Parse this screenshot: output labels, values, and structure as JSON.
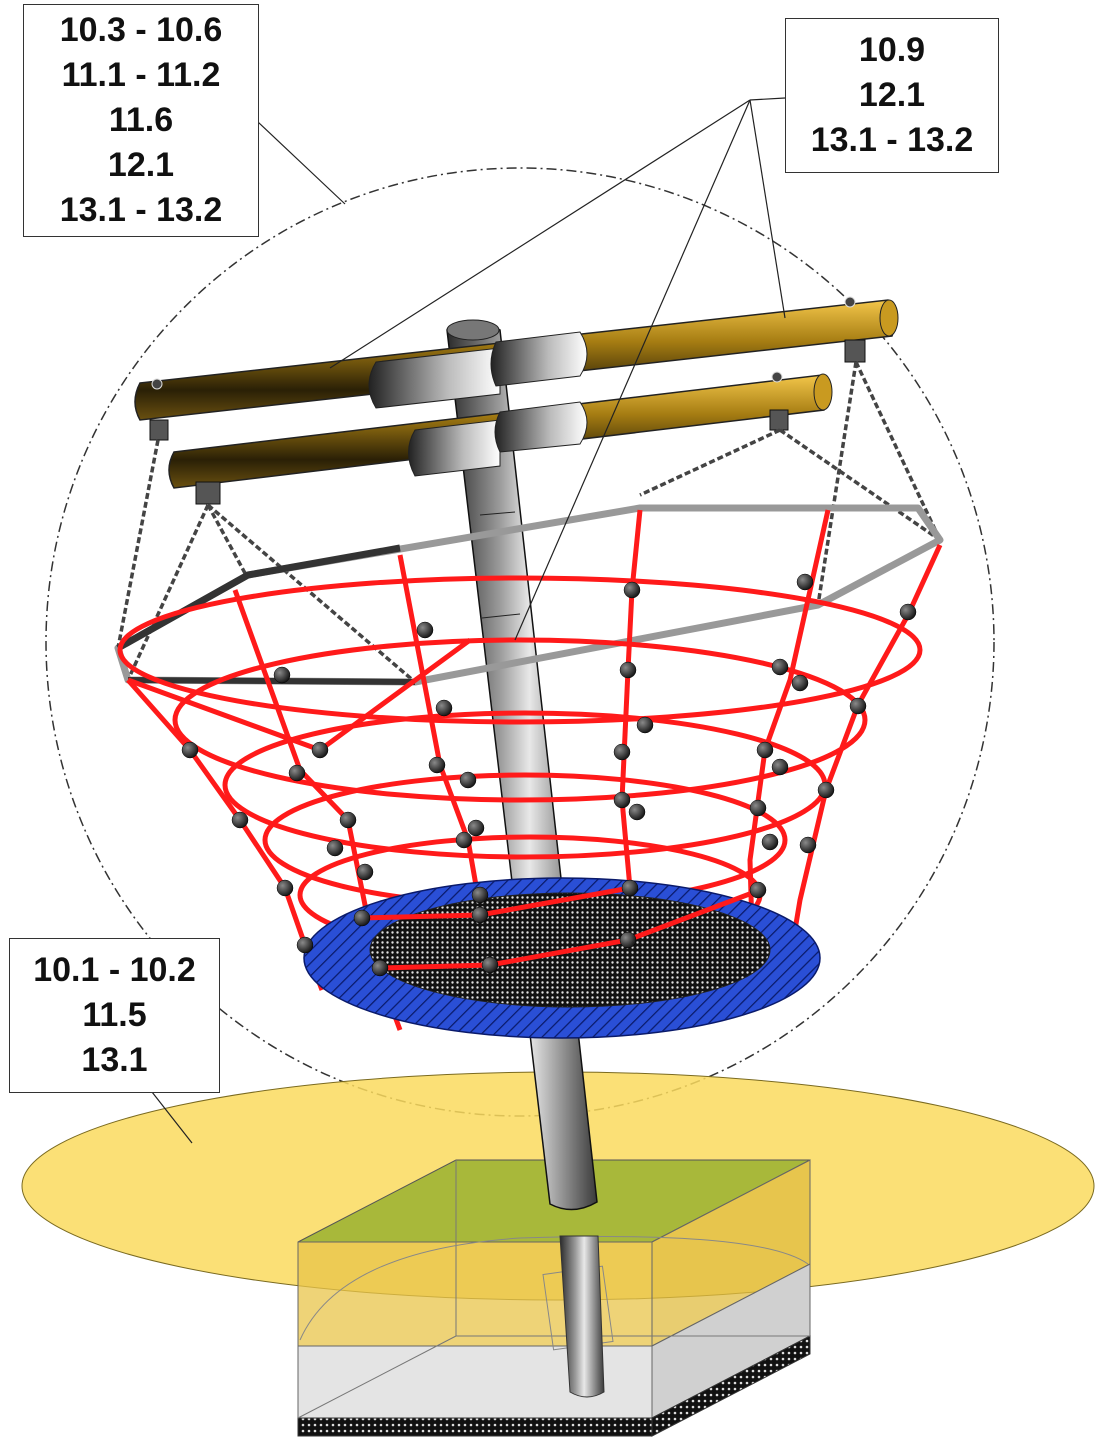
{
  "callouts": {
    "top_left": [
      "10.3 - 10.6",
      "11.1 - 11.2",
      "11.6",
      "12.1",
      "13.1 - 13.2"
    ],
    "top_right": [
      "10.9",
      "12.1",
      "13.1 - 13.2"
    ],
    "bottom_left": [
      "10.1 - 10.2",
      "11.5",
      "13.1"
    ]
  },
  "colors": {
    "net_rope": "#ff1a1a",
    "seat_ring": "#2a4fd6",
    "impact_area": "#fada5e",
    "ground_top": "#a8b83a",
    "crossbar": "#8a6a10",
    "post": "#555555"
  }
}
